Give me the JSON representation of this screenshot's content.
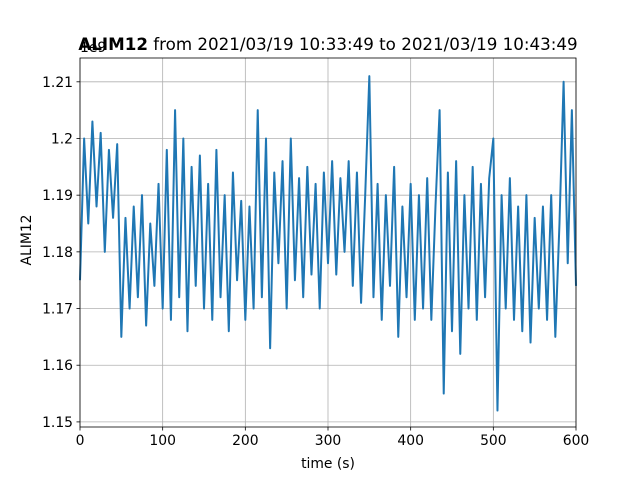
{
  "chart_data": {
    "type": "line",
    "title_name": "ALIM12",
    "title_rest": "from 2021/03/19 10:33:49 to 2021/03/19 10:43:49",
    "y_offset_label": "1e9",
    "xlabel": "time (s)",
    "ylabel": "ALIM12",
    "xlim": [
      0,
      600
    ],
    "ylim": [
      1.1491,
      1.2142
    ],
    "xticks": [
      0,
      100,
      200,
      300,
      400,
      500,
      600
    ],
    "yticks": [
      1.15,
      1.16,
      1.17,
      1.18,
      1.19,
      1.2,
      {
        "value": 1.21,
        "label": "1.21"
      }
    ],
    "grid": true,
    "x": [
      0,
      5,
      10,
      15,
      20,
      25,
      30,
      35,
      40,
      45,
      50,
      55,
      60,
      65,
      70,
      75,
      80,
      85,
      90,
      95,
      100,
      105,
      110,
      115,
      120,
      125,
      130,
      135,
      140,
      145,
      150,
      155,
      160,
      165,
      170,
      175,
      180,
      185,
      190,
      195,
      200,
      205,
      210,
      215,
      220,
      225,
      230,
      235,
      240,
      245,
      250,
      255,
      260,
      265,
      270,
      275,
      280,
      285,
      290,
      295,
      300,
      305,
      310,
      315,
      320,
      325,
      330,
      335,
      340,
      345,
      350,
      355,
      360,
      365,
      370,
      375,
      380,
      385,
      390,
      395,
      400,
      405,
      410,
      415,
      420,
      425,
      430,
      435,
      440,
      445,
      450,
      455,
      460,
      465,
      470,
      475,
      480,
      485,
      490,
      495,
      500,
      505,
      510,
      515,
      520,
      525,
      530,
      535,
      540,
      545,
      550,
      555,
      560,
      565,
      570,
      575,
      580,
      585,
      590,
      595,
      600
    ],
    "series": [
      {
        "name": "ALIM12",
        "color": "#1f77b4",
        "values": [
          1.175,
          1.2,
          1.185,
          1.203,
          1.188,
          1.201,
          1.18,
          1.198,
          1.186,
          1.199,
          1.165,
          1.186,
          1.17,
          1.188,
          1.172,
          1.19,
          1.167,
          1.185,
          1.174,
          1.192,
          1.17,
          1.198,
          1.168,
          1.205,
          1.172,
          1.2,
          1.166,
          1.195,
          1.174,
          1.197,
          1.17,
          1.192,
          1.168,
          1.198,
          1.172,
          1.19,
          1.166,
          1.194,
          1.175,
          1.189,
          1.168,
          1.188,
          1.17,
          1.205,
          1.172,
          1.2,
          1.163,
          1.194,
          1.178,
          1.196,
          1.17,
          1.2,
          1.175,
          1.193,
          1.172,
          1.195,
          1.176,
          1.192,
          1.17,
          1.194,
          1.178,
          1.196,
          1.176,
          1.193,
          1.18,
          1.196,
          1.174,
          1.194,
          1.171,
          1.19,
          1.211,
          1.172,
          1.192,
          1.168,
          1.19,
          1.174,
          1.195,
          1.165,
          1.188,
          1.172,
          1.192,
          1.168,
          1.19,
          1.17,
          1.193,
          1.168,
          1.188,
          1.205,
          1.155,
          1.194,
          1.166,
          1.196,
          1.162,
          1.19,
          1.17,
          1.195,
          1.168,
          1.192,
          1.172,
          1.193,
          1.2,
          1.152,
          1.19,
          1.17,
          1.193,
          1.168,
          1.188,
          1.166,
          1.19,
          1.164,
          1.186,
          1.17,
          1.188,
          1.168,
          1.19,
          1.165,
          1.185,
          1.21,
          1.178,
          1.205,
          1.174
        ]
      }
    ]
  }
}
